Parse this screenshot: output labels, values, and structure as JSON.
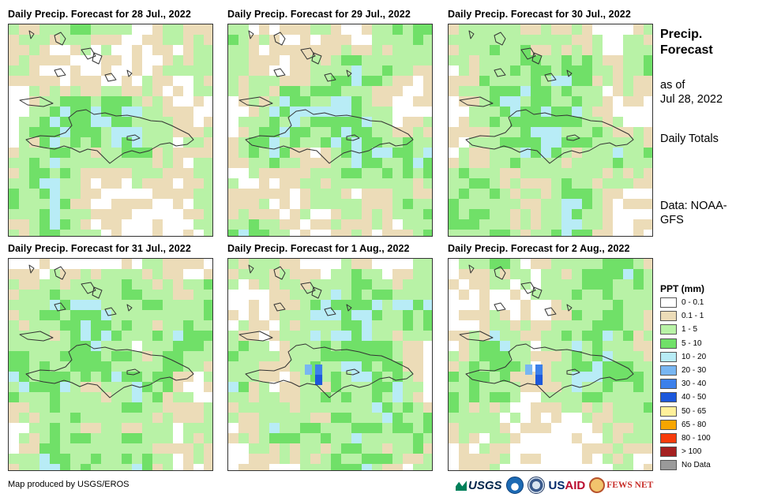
{
  "panels": [
    {
      "title": "Daily Precip. Forecast for 28 Jul., 2022",
      "seed": 11,
      "wet": 0.55
    },
    {
      "title": "Daily Precip. Forecast for 29 Jul., 2022",
      "seed": 23,
      "wet": 0.35
    },
    {
      "title": "Daily Precip. Forecast for 30 Jul., 2022",
      "seed": 37,
      "wet": 0.4
    },
    {
      "title": "Daily Precip. Forecast for 31 Jul., 2022",
      "seed": 41,
      "wet": 0.5
    },
    {
      "title": "Daily Precip. Forecast for 1 Aug., 2022",
      "seed": 53,
      "wet": 0.3
    },
    {
      "title": "Daily Precip. Forecast for 2 Aug., 2022",
      "seed": 67,
      "wet": 0.3
    }
  ],
  "side": {
    "title": "Precip. Forecast",
    "asof_label": "as of",
    "asof_date": "Jul 28, 2022",
    "totals": "Daily Totals",
    "data_source": "Data: NOAA-GFS"
  },
  "legend": {
    "title": "PPT (mm)",
    "items": [
      {
        "label": "0 - 0.1",
        "color": "#ffffff"
      },
      {
        "label": "0.1 - 1",
        "color": "#ecdcb8"
      },
      {
        "label": "1 - 5",
        "color": "#b8f2a6"
      },
      {
        "label": "5 - 10",
        "color": "#70e068"
      },
      {
        "label": "10 - 20",
        "color": "#b8ecf6"
      },
      {
        "label": "20 - 30",
        "color": "#78b6f2"
      },
      {
        "label": "30 - 40",
        "color": "#3c80ea"
      },
      {
        "label": "40 - 50",
        "color": "#1c58dc"
      },
      {
        "label": "50 - 65",
        "color": "#fff09a"
      },
      {
        "label": "65 - 80",
        "color": "#f7a500"
      },
      {
        "label": "80 - 100",
        "color": "#f73c0c"
      },
      {
        "label": "> 100",
        "color": "#a52020"
      },
      {
        "label": "No Data",
        "color": "#9a9a9a"
      }
    ]
  },
  "credit": "Map produced by USGS/EROS",
  "logos": {
    "usgs": "USGS",
    "usaid_us": "US",
    "usaid_aid": "AID",
    "fews": "FEWS NET"
  }
}
